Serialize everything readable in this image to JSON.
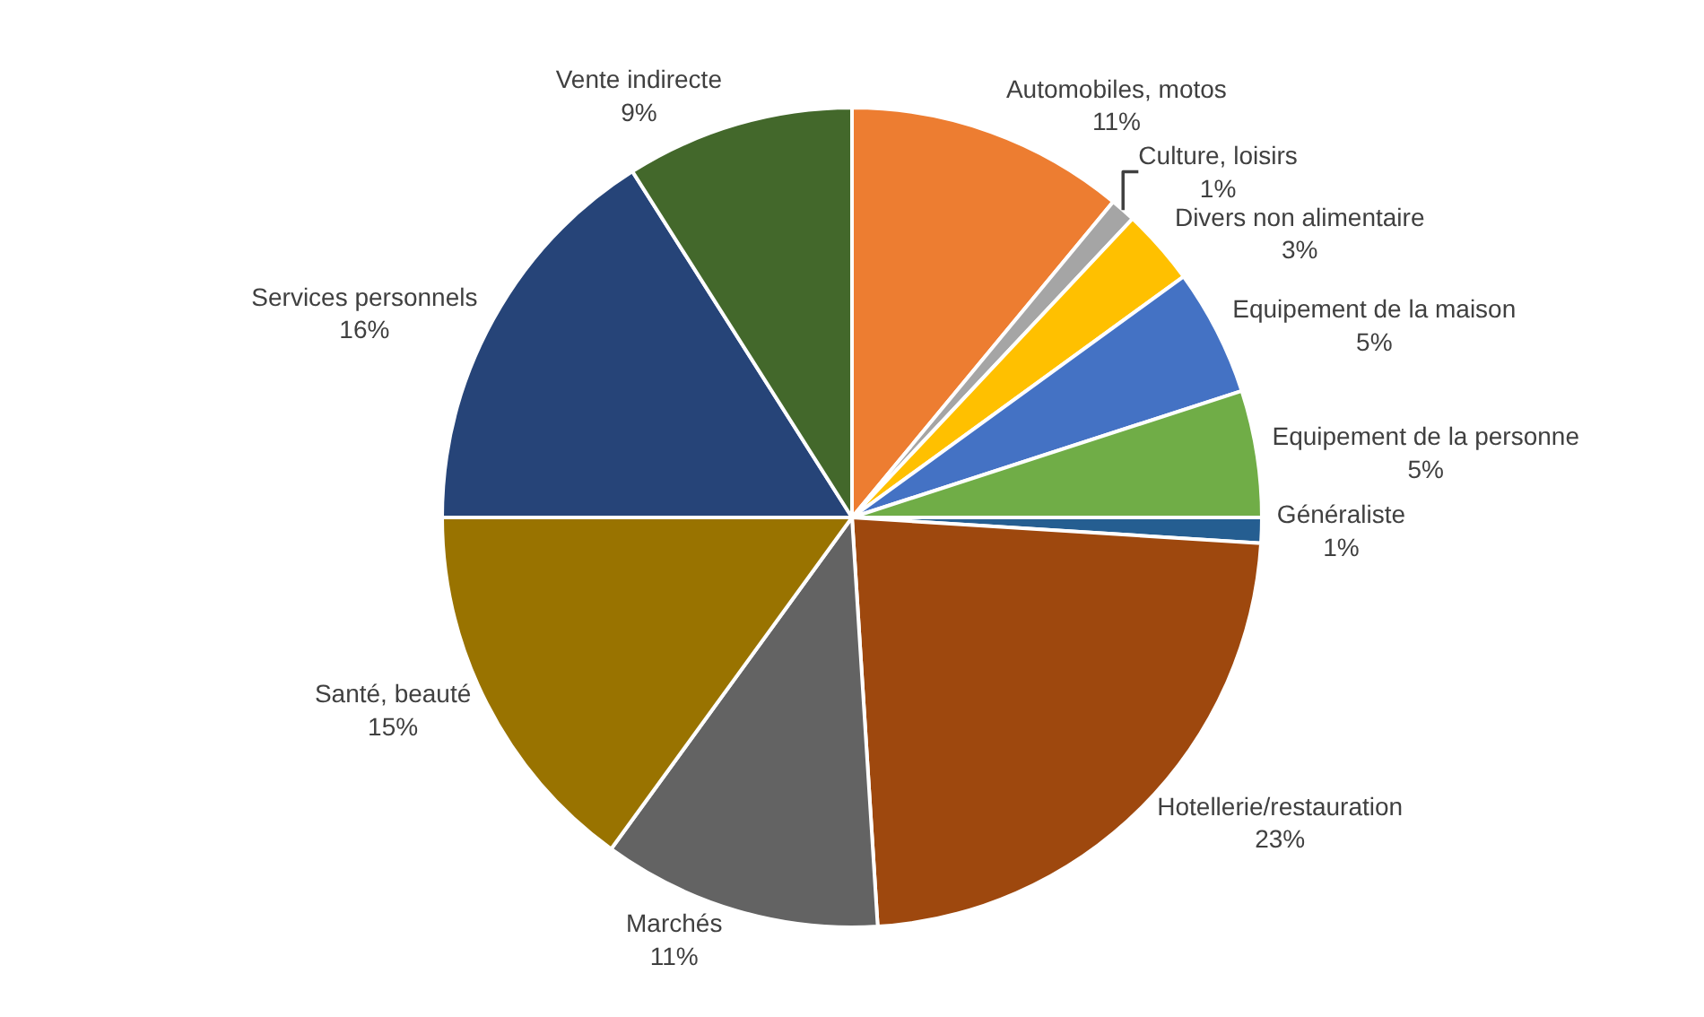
{
  "chart_data": {
    "type": "pie",
    "categories": [
      "Automobiles, motos",
      "Culture, loisirs",
      "Divers non alimentaire",
      "Equipement de la maison",
      "Equipement de la personne",
      "Généraliste",
      "Hotellerie/restauration",
      "Marchés",
      "Santé, beauté",
      "Services personnels",
      "Vente indirecte"
    ],
    "values": [
      11,
      1,
      3,
      5,
      5,
      1,
      23,
      11,
      15,
      16,
      9
    ],
    "value_labels": [
      "11%",
      "1%",
      "3%",
      "5%",
      "5%",
      "1%",
      "23%",
      "11%",
      "15%",
      "16%",
      "9%"
    ],
    "colors": [
      "#ed7d31",
      "#a5a5a5",
      "#ffc000",
      "#4472c4",
      "#70ad47",
      "#255e91",
      "#9e480e",
      "#636363",
      "#997300",
      "#264478",
      "#43682b"
    ],
    "legend": false
  }
}
